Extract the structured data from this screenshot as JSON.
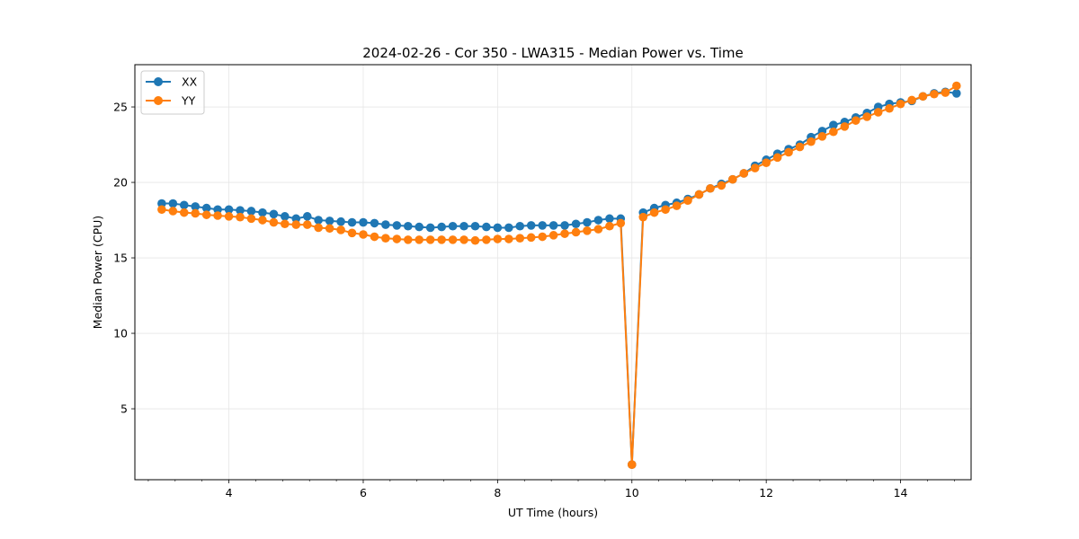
{
  "chart_data": {
    "type": "line",
    "title": "2024-02-26 - Cor 350 - LWA315 - Median Power vs. Time",
    "xlabel": "UT Time (hours)",
    "ylabel": "Median Power (CPU)",
    "xlim": [
      2.6,
      15.05
    ],
    "ylim": [
      0.3,
      27.8
    ],
    "xticks": [
      4,
      6,
      8,
      10,
      12,
      14
    ],
    "xtick_labels": [
      "4",
      "6",
      "8",
      "10",
      "12",
      "14"
    ],
    "yticks": [
      5,
      10,
      15,
      20,
      25
    ],
    "ytick_labels": [
      "5",
      "10",
      "15",
      "20",
      "25"
    ],
    "grid": true,
    "legend_position": "top-left",
    "x": [
      3.0,
      3.167,
      3.333,
      3.5,
      3.667,
      3.833,
      4.0,
      4.167,
      4.333,
      4.5,
      4.667,
      4.833,
      5.0,
      5.167,
      5.333,
      5.5,
      5.667,
      5.833,
      6.0,
      6.167,
      6.333,
      6.5,
      6.667,
      6.833,
      7.0,
      7.167,
      7.333,
      7.5,
      7.667,
      7.833,
      8.0,
      8.167,
      8.333,
      8.5,
      8.667,
      8.833,
      9.0,
      9.167,
      9.333,
      9.5,
      9.667,
      9.833,
      10.0,
      10.167,
      10.333,
      10.5,
      10.667,
      10.833,
      11.0,
      11.167,
      11.333,
      11.5,
      11.667,
      11.833,
      12.0,
      12.167,
      12.333,
      12.5,
      12.667,
      12.833,
      13.0,
      13.167,
      13.333,
      13.5,
      13.667,
      13.833,
      14.0,
      14.167,
      14.333,
      14.5,
      14.667,
      14.833
    ],
    "series": [
      {
        "name": "XX",
        "color": "#1f77b4",
        "values": [
          18.6,
          18.6,
          18.5,
          18.4,
          18.3,
          18.2,
          18.2,
          18.15,
          18.1,
          18.0,
          17.9,
          17.75,
          17.6,
          17.75,
          17.5,
          17.45,
          17.4,
          17.35,
          17.35,
          17.3,
          17.2,
          17.15,
          17.1,
          17.05,
          17.0,
          17.05,
          17.1,
          17.1,
          17.1,
          17.05,
          17.0,
          17.0,
          17.1,
          17.15,
          17.15,
          17.15,
          17.15,
          17.25,
          17.35,
          17.5,
          17.6,
          17.6,
          1.3,
          18.0,
          18.3,
          18.5,
          18.65,
          18.9,
          19.2,
          19.6,
          19.9,
          20.2,
          20.6,
          21.1,
          21.5,
          21.9,
          22.2,
          22.5,
          23.0,
          23.4,
          23.8,
          24.0,
          24.3,
          24.6,
          25.0,
          25.2,
          25.3,
          25.4,
          25.7,
          25.9,
          26.0,
          25.9
        ]
      },
      {
        "name": "YY",
        "color": "#ff7f0e",
        "values": [
          18.2,
          18.1,
          18.0,
          17.95,
          17.85,
          17.8,
          17.75,
          17.7,
          17.6,
          17.5,
          17.35,
          17.25,
          17.2,
          17.2,
          17.0,
          16.95,
          16.85,
          16.65,
          16.55,
          16.4,
          16.3,
          16.25,
          16.2,
          16.2,
          16.2,
          16.2,
          16.2,
          16.2,
          16.15,
          16.2,
          16.25,
          16.25,
          16.3,
          16.35,
          16.4,
          16.5,
          16.6,
          16.7,
          16.8,
          16.9,
          17.1,
          17.3,
          1.3,
          17.7,
          18.0,
          18.2,
          18.45,
          18.8,
          19.2,
          19.6,
          19.8,
          20.2,
          20.6,
          20.95,
          21.3,
          21.65,
          22.0,
          22.35,
          22.7,
          23.05,
          23.35,
          23.7,
          24.1,
          24.35,
          24.65,
          24.9,
          25.2,
          25.45,
          25.7,
          25.85,
          25.95,
          26.4
        ]
      }
    ]
  }
}
